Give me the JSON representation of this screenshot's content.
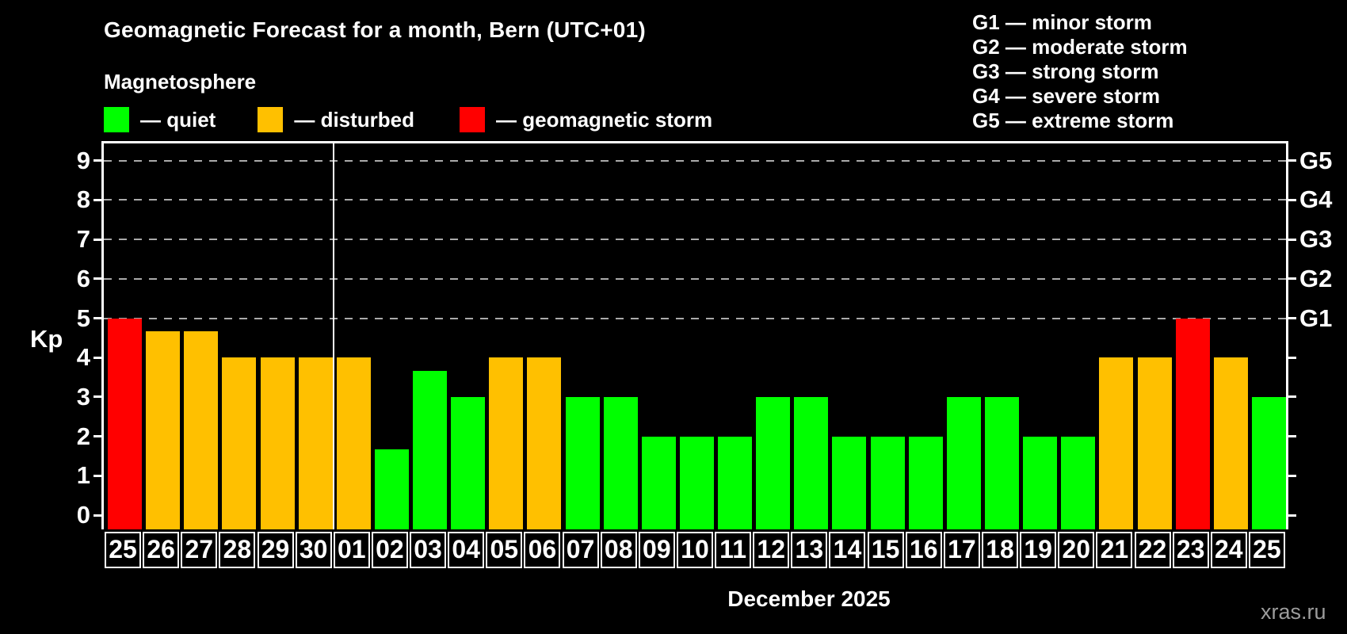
{
  "title": "Geomagnetic Forecast for a month, Bern (UTC+01)",
  "subtitle": "Magnetosphere",
  "legend": {
    "items": [
      {
        "key": "quiet",
        "label": "— quiet",
        "color": "#00ff00"
      },
      {
        "key": "disturbed",
        "label": "— disturbed",
        "color": "#ffc000"
      },
      {
        "key": "storm",
        "label": "— geomagnetic storm",
        "color": "#ff0000"
      }
    ]
  },
  "g_scale": [
    {
      "code": "G1",
      "name": "minor storm",
      "label": "G1 — minor storm",
      "kp": 5
    },
    {
      "code": "G2",
      "name": "moderate storm",
      "label": "G2 — moderate storm",
      "kp": 6
    },
    {
      "code": "G3",
      "name": "strong storm",
      "label": "G3 — strong storm",
      "kp": 7
    },
    {
      "code": "G4",
      "name": "severe storm",
      "label": "G4 — severe storm",
      "kp": 8
    },
    {
      "code": "G5",
      "name": "extreme storm",
      "label": "G5 — extreme storm",
      "kp": 9
    }
  ],
  "axes": {
    "y_label": "Kp",
    "y_ticks": [
      0,
      1,
      2,
      3,
      4,
      5,
      6,
      7,
      8,
      9
    ],
    "grid_levels": [
      5,
      6,
      7,
      8,
      9
    ],
    "x_label": "December 2025"
  },
  "watermark": "xras.ru",
  "chart_data": {
    "type": "bar",
    "title": "Geomagnetic Forecast for a month, Bern (UTC+01)",
    "xlabel": "December 2025",
    "ylabel": "Kp",
    "ylim": [
      0,
      9
    ],
    "grid": "dashed horizontal at Kp 5-9 (G1-G5)",
    "legend_position": "top",
    "categories": [
      "25",
      "26",
      "27",
      "28",
      "29",
      "30",
      "01",
      "02",
      "03",
      "04",
      "05",
      "06",
      "07",
      "08",
      "09",
      "10",
      "11",
      "12",
      "13",
      "14",
      "15",
      "16",
      "17",
      "18",
      "19",
      "20",
      "21",
      "22",
      "23",
      "24",
      "25"
    ],
    "values": [
      5.0,
      4.67,
      4.67,
      4.0,
      4.0,
      4.0,
      4.0,
      1.67,
      3.67,
      3.0,
      4.0,
      4.0,
      3.0,
      3.0,
      2.0,
      2.0,
      2.0,
      3.0,
      3.0,
      2.0,
      2.0,
      2.0,
      3.0,
      3.0,
      2.0,
      2.0,
      4.0,
      4.0,
      5.0,
      4.0,
      3.0
    ],
    "statuses": [
      "storm",
      "disturbed",
      "disturbed",
      "disturbed",
      "disturbed",
      "disturbed",
      "disturbed",
      "quiet",
      "quiet",
      "quiet",
      "disturbed",
      "disturbed",
      "quiet",
      "quiet",
      "quiet",
      "quiet",
      "quiet",
      "quiet",
      "quiet",
      "quiet",
      "quiet",
      "quiet",
      "quiet",
      "quiet",
      "quiet",
      "quiet",
      "disturbed",
      "disturbed",
      "storm",
      "disturbed",
      "quiet"
    ],
    "month_boundary_after_index": 5,
    "colors": {
      "quiet": "#00ff00",
      "disturbed": "#ffc000",
      "storm": "#ff0000"
    }
  }
}
